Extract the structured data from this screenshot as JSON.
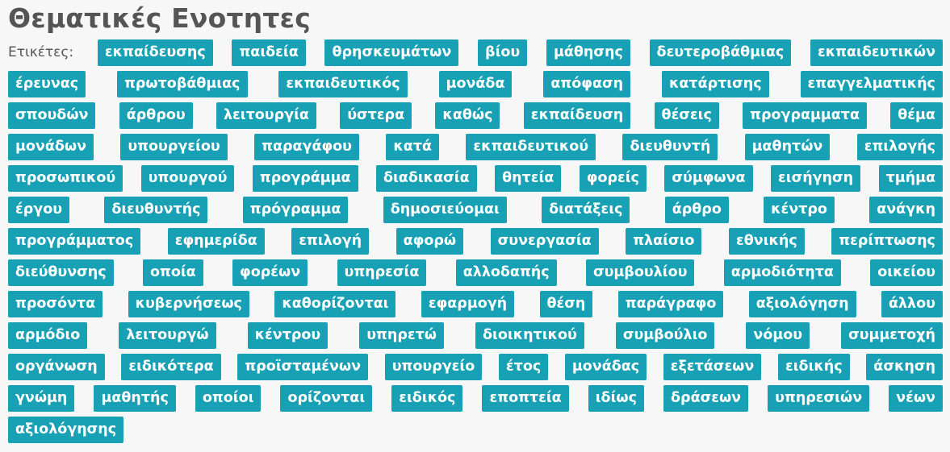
{
  "heading": "Θεματικές Ενοτητες",
  "tags_label": "Ετικέτες:",
  "tag_color": "#18a0b4",
  "rows": [
    [
      "εκπαίδευσης",
      "παιδεία",
      "θρησκευμάτων",
      "βίου",
      "μάθησης",
      "δευτεροβάθμιας",
      "εκπαιδευτικών"
    ],
    [
      "έρευνας",
      "πρωτοβάθμιας",
      "εκπαιδευτικός",
      "μονάδα",
      "απόφαση",
      "κατάρτισης",
      "επαγγελματικής"
    ],
    [
      "σπουδών",
      "άρθρου",
      "λειτουργία",
      "ύστερα",
      "καθώς",
      "εκπαίδευση",
      "θέσεις",
      "προγραμματα",
      "θέμα"
    ],
    [
      "μονάδων",
      "υπουργείου",
      "παραγάφου",
      "κατά",
      "εκπαιδευτικού",
      "διευθυντή",
      "μαθητών",
      "επιλογής"
    ],
    [
      "προσωπικού",
      "υπουργού",
      "προγράμμα",
      "διαδικασία",
      "θητεία",
      "φορείς",
      "σύμφωνα",
      "εισήγηση",
      "τμήμα"
    ],
    [
      "έργου",
      "διευθυντής",
      "πρόγραμμα",
      "δημοσιεύομαι",
      "διατάξεις",
      "άρθρο",
      "κέντρο",
      "ανάγκη"
    ],
    [
      "προγράμματος",
      "εφημερίδα",
      "επιλογή",
      "αφορώ",
      "συνεργασία",
      "πλαίσιο",
      "εθνικής",
      "περίπτωσης"
    ],
    [
      "διεύθυνσης",
      "οποία",
      "φορέων",
      "υπηρεσία",
      "αλλοδαπής",
      "συμβουλίου",
      "αρμοδιότητα",
      "οικείου"
    ],
    [
      "προσόντα",
      "κυβερνήσεως",
      "καθορίζονται",
      "εφαρμογή",
      "θέση",
      "παράγραφο",
      "αξιολόγηση",
      "άλλου"
    ],
    [
      "αρμόδιο",
      "λειτουργώ",
      "κέντρου",
      "υπηρετώ",
      "διοικητικού",
      "συμβούλιο",
      "νόμου",
      "συμμετοχή"
    ],
    [
      "οργάνωση",
      "ειδικότερα",
      "προϊσταμένων",
      "υπουργείο",
      "έτος",
      "μονάδας",
      "εξετάσεων",
      "ειδικής",
      "άσκηση"
    ],
    [
      "γνώμη",
      "μαθητής",
      "οποίοι",
      "ορίζονται",
      "ειδικός",
      "εποπτεία",
      "ιδίως",
      "δράσεων",
      "υπηρεσιών",
      "νέων"
    ],
    [
      "αξιολόγησης"
    ]
  ]
}
